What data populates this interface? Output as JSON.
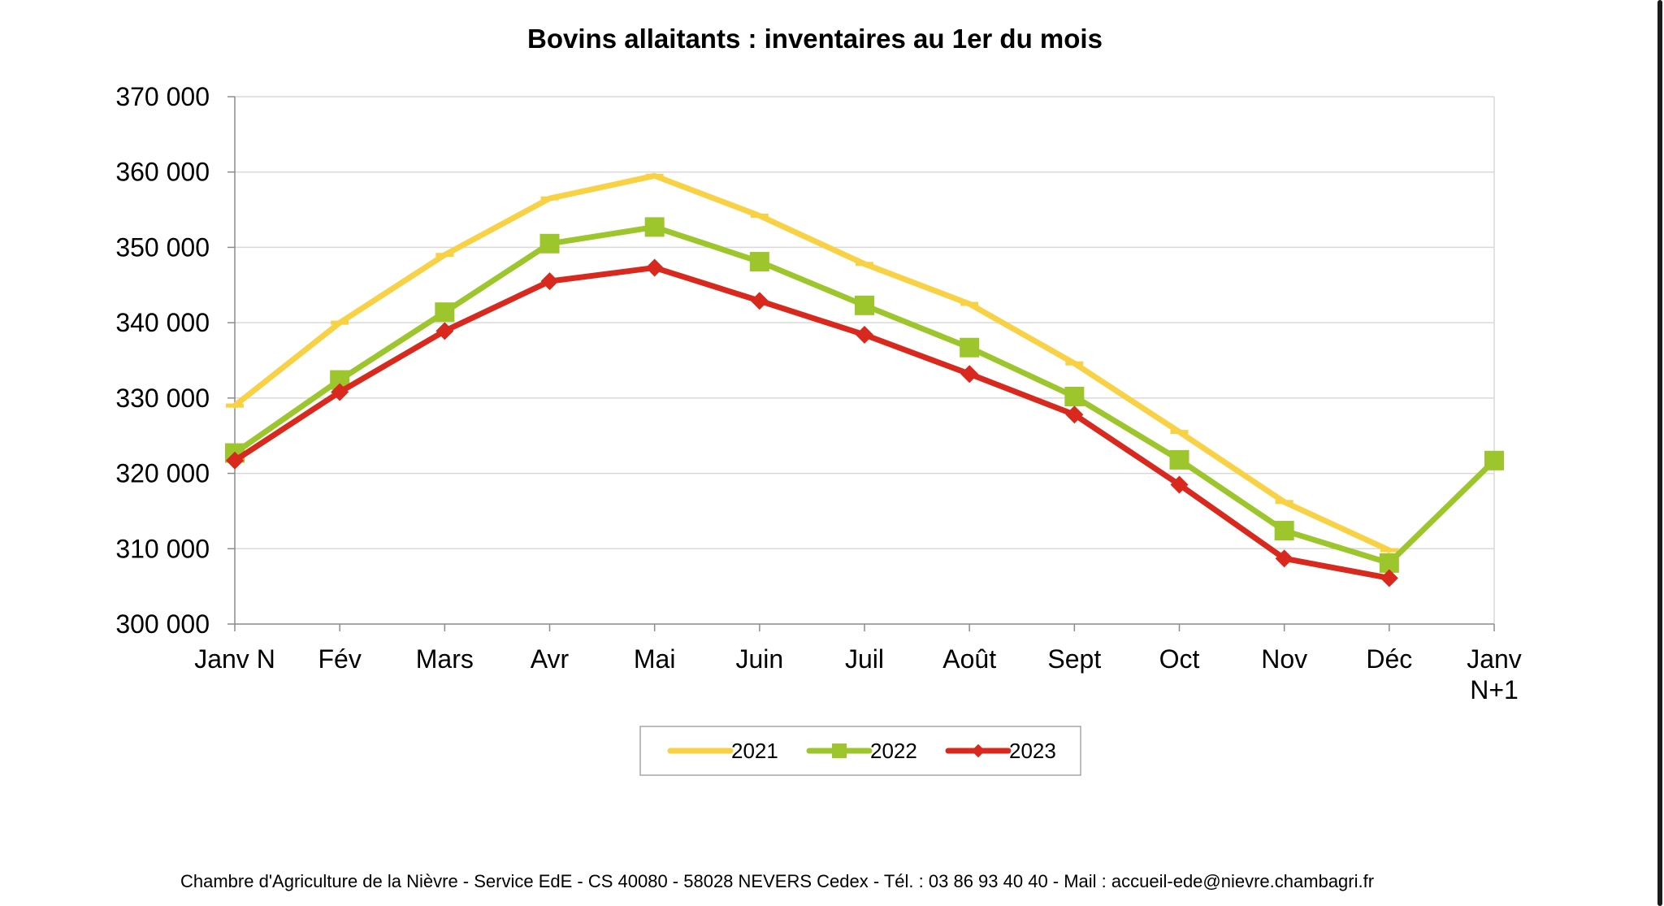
{
  "chart_data": {
    "type": "line",
    "title": "Bovins allaitants : inventaires au 1er du mois",
    "xlabel": "",
    "ylabel": "",
    "categories": [
      [
        "Janv N"
      ],
      [
        "Fév"
      ],
      [
        "Mars"
      ],
      [
        "Avr"
      ],
      [
        "Mai"
      ],
      [
        "Juin"
      ],
      [
        "Juil"
      ],
      [
        "Août"
      ],
      [
        "Sept"
      ],
      [
        "Oct"
      ],
      [
        "Nov"
      ],
      [
        "Déc"
      ],
      [
        "Janv",
        "N+1"
      ]
    ],
    "ylim": [
      300000,
      370000
    ],
    "yticks": [
      300000,
      310000,
      320000,
      330000,
      340000,
      350000,
      360000,
      370000
    ],
    "ytick_labels": [
      "300 000",
      "310 000",
      "320 000",
      "330 000",
      "340 000",
      "350 000",
      "360 000",
      "370 000"
    ],
    "grid": true,
    "legend_position": "bottom-center",
    "series": [
      {
        "name": "2021",
        "color": "#F8D144",
        "marker": "dash",
        "values": [
          329000,
          340000,
          349000,
          356500,
          359500,
          354200,
          347800,
          342500,
          334600,
          325500,
          316200,
          309800,
          null
        ]
      },
      {
        "name": "2022",
        "color": "#9DC62D",
        "marker": "square",
        "values": [
          322700,
          332400,
          341400,
          350500,
          352700,
          348100,
          342300,
          336700,
          330200,
          321800,
          312400,
          308100,
          321700
        ]
      },
      {
        "name": "2023",
        "color": "#D9281E",
        "marker": "diamond",
        "values": [
          321700,
          330800,
          338900,
          345500,
          347300,
          342900,
          338400,
          333200,
          327800,
          318500,
          308700,
          306100,
          null
        ]
      }
    ]
  },
  "footer": {
    "text": "Chambre d'Agriculture de la Nièvre - Service EdE - CS 40080 - 58028 NEVERS Cedex - Tél. : 03 86 93 40 40 - Mail : accueil-ede@nievre.chambagri.fr"
  }
}
